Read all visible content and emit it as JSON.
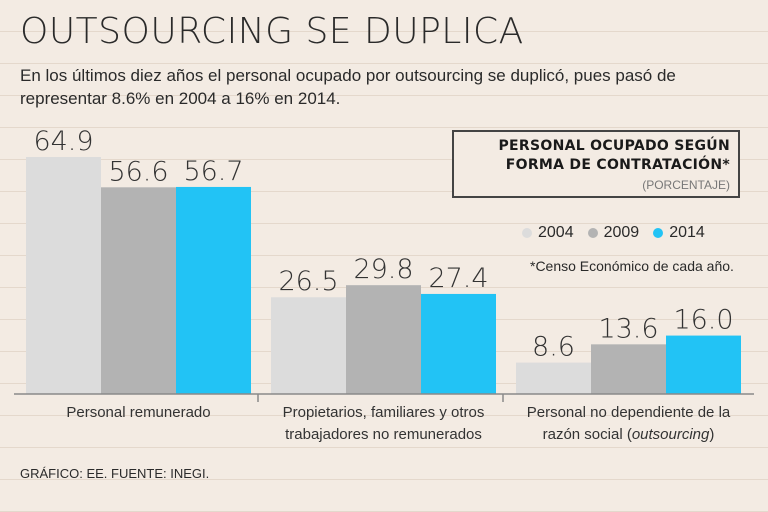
{
  "header": {
    "title": "OUTSOURCING SE DUPLICA",
    "subtitle": "En los últimos diez años el personal ocupado por outsourcing se duplicó, pues pasó de representar 8.6% en 2004 a 16% en 2014."
  },
  "legend": {
    "title": "PERSONAL OCUPADO SEGÚN\nFORMA DE CONTRATACIÓN*",
    "unit": "(PORCENTAJE)",
    "items": [
      {
        "label": "2004",
        "color": "#dcdcdc"
      },
      {
        "label": "2009",
        "color": "#b3b3b3"
      },
      {
        "label": "2014",
        "color": "#22c3f5"
      }
    ],
    "note": "*Censo Económico de cada año."
  },
  "source": "GRÁFICO: EE. FUENTE: INEGI.",
  "chart_data": {
    "type": "bar",
    "categories": [
      [
        "Personal remunerado"
      ],
      [
        "Propietarios, familiares y otros",
        "trabajadores no remunerados"
      ],
      [
        "Personal no dependiente de la",
        "razón social (outsourcing)"
      ]
    ],
    "series": [
      {
        "name": "2004",
        "values": [
          64.9,
          26.5,
          8.6
        ],
        "labels": [
          "64.9",
          "26.5",
          "8.6"
        ]
      },
      {
        "name": "2009",
        "values": [
          56.6,
          29.8,
          13.6
        ],
        "labels": [
          "56.6",
          "29.8",
          "13.6"
        ]
      },
      {
        "name": "2014",
        "values": [
          56.7,
          27.4,
          16.0
        ],
        "labels": [
          "56.7",
          "27.4",
          "16.0"
        ]
      }
    ],
    "colors": [
      "#dcdcdc",
      "#b3b3b3",
      "#22c3f5"
    ],
    "ylim": [
      0,
      70
    ],
    "grid": false,
    "legend_position": "top-right"
  }
}
